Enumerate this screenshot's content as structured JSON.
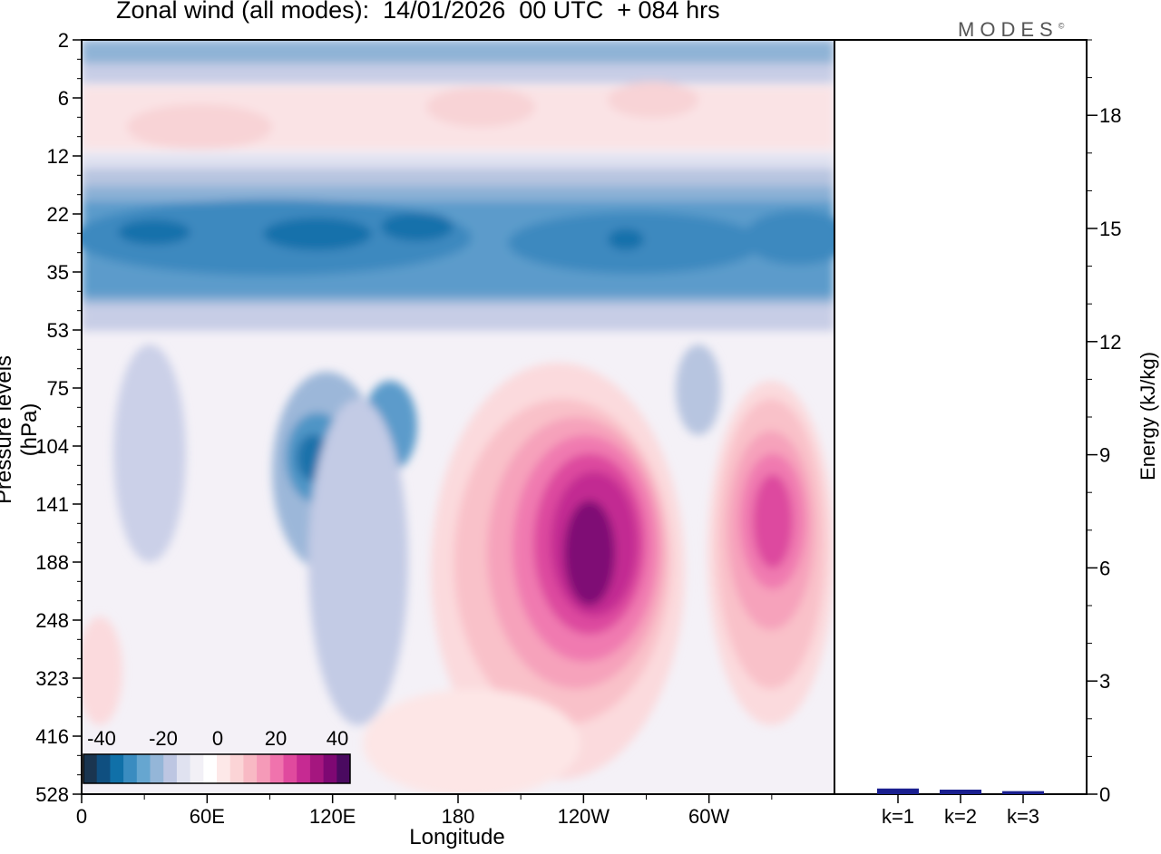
{
  "title": "Zonal wind (all modes):  14/01/2026  00 UTC  + 084 hrs",
  "logo": "MODES",
  "logo_mark": "©",
  "chart_data": [
    {
      "type": "heatmap",
      "title": "Zonal wind (all modes):  14/01/2026  00 UTC  + 084 hrs",
      "xlabel": "Longitude",
      "ylabel": "Pressure levels (hPa)",
      "xticks": [
        "0",
        "60E",
        "120E",
        "180",
        "120W",
        "60W"
      ],
      "yticks": [
        "2",
        "6",
        "12",
        "22",
        "35",
        "53",
        "75",
        "104",
        "141",
        "188",
        "248",
        "323",
        "416",
        "528"
      ],
      "colorbar": {
        "labels": [
          "-40",
          "-20",
          "0",
          "20",
          "40"
        ],
        "colors": [
          "#1a3550",
          "#0f4f80",
          "#1070a8",
          "#3a8cc0",
          "#66a6d0",
          "#94b6d8",
          "#bdc6e2",
          "#e0e2f0",
          "#f2f0f6",
          "#ffffff",
          "#fde8e8",
          "#fbd4d6",
          "#f8b9c4",
          "#f59ab8",
          "#f073ad",
          "#e04a9e",
          "#c62a92",
          "#a5167f",
          "#7e0873",
          "#4a0a60"
        ]
      },
      "features": [
        {
          "name": "easterly band stratosphere",
          "lon_center": 180,
          "level": "22-35",
          "value": -30
        },
        {
          "name": "easterly core west",
          "lon_center": 20,
          "level": "22",
          "value": -35
        },
        {
          "name": "easterly core dateline",
          "lon_center": 130,
          "level": "22",
          "value": -35
        },
        {
          "name": "easterly core east",
          "lon_center": 250,
          "level": "22",
          "value": -30
        },
        {
          "name": "westerly jet 120W",
          "lon_center": 245,
          "level": "141-188",
          "value": 45
        },
        {
          "name": "westerly jet 30W",
          "lon_center": 330,
          "level": "141",
          "value": 30
        },
        {
          "name": "easterly core 120E",
          "lon_center": 118,
          "level": "104",
          "value": -25
        }
      ]
    },
    {
      "type": "bar",
      "categories": [
        "k=1",
        "k=2",
        "k=3"
      ],
      "values": [
        0.15,
        0.12,
        0.08
      ],
      "ylabel": "Energy (kJ/kg)",
      "yticks": [
        "0",
        "3",
        "6",
        "9",
        "12",
        "15",
        "18"
      ],
      "ylim": [
        0,
        20
      ],
      "bar_color": "#1a1f8f"
    }
  ]
}
